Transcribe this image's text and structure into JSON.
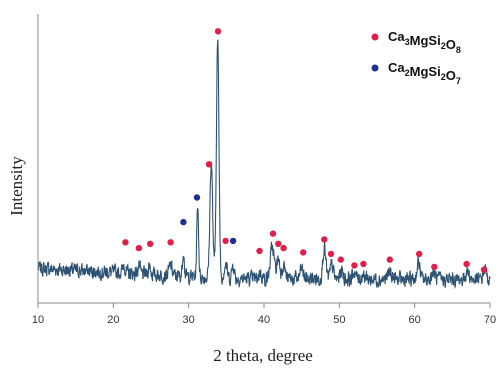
{
  "chart_data": {
    "type": "line",
    "title": "",
    "xlabel": "2 theta, degree",
    "ylabel": "Intensity",
    "xlim": [
      10,
      70
    ],
    "x_ticks": [
      10,
      20,
      30,
      40,
      50,
      60,
      70
    ],
    "y_ticks_visible": false,
    "grid": false,
    "legend_position": "top-right",
    "colors": {
      "line": "#2e5272",
      "marker_ca3": "#e0204b",
      "marker_ca2": "#1f2f8f",
      "axis": "#888888"
    },
    "legend": [
      {
        "id": "ca3",
        "base": "Ca",
        "parts": [
          [
            "Ca",
            "3"
          ],
          [
            "MgSi",
            "2"
          ],
          [
            "O",
            "8"
          ]
        ],
        "color": "#e0204b"
      },
      {
        "id": "ca2",
        "base": "Ca",
        "parts": [
          [
            "Ca",
            "2"
          ],
          [
            "MgSi",
            "2"
          ],
          [
            "O",
            "7"
          ]
        ],
        "color": "#1f2f8f"
      }
    ],
    "baseline": {
      "start": 0.12,
      "mid": 0.085,
      "end": 0.08
    },
    "series": [
      {
        "peaks": [
          [
            21.4,
            0.03,
            0.15
          ],
          [
            23.4,
            0.025,
            0.15
          ],
          [
            24.8,
            0.03,
            0.15
          ],
          [
            27.6,
            0.035,
            0.2
          ],
          [
            29.3,
            0.09,
            0.12
          ],
          [
            31.2,
            0.25,
            0.12
          ],
          [
            33.0,
            0.4,
            0.18
          ],
          [
            33.85,
            0.82,
            0.17
          ],
          [
            34.9,
            0.05,
            0.2
          ],
          [
            35.9,
            0.05,
            0.15
          ],
          [
            39.5,
            0.02,
            0.2
          ],
          [
            41.1,
            0.11,
            0.25
          ],
          [
            41.9,
            0.07,
            0.2
          ],
          [
            42.6,
            0.05,
            0.2
          ],
          [
            45.0,
            0.035,
            0.2
          ],
          [
            48.0,
            0.11,
            0.2
          ],
          [
            49.0,
            0.05,
            0.2
          ],
          [
            50.3,
            0.03,
            0.2
          ],
          [
            52.0,
            0.025,
            0.2
          ],
          [
            53.2,
            0.02,
            0.2
          ],
          [
            56.7,
            0.025,
            0.25
          ],
          [
            60.5,
            0.06,
            0.2
          ],
          [
            62.5,
            0.025,
            0.25
          ],
          [
            67.0,
            0.03,
            0.25
          ],
          [
            69.3,
            0.04,
            0.2
          ]
        ]
      }
    ],
    "markers": [
      {
        "x": 21.6,
        "y": 0.21,
        "phase": "ca3"
      },
      {
        "x": 23.4,
        "y": 0.19,
        "phase": "ca3"
      },
      {
        "x": 24.9,
        "y": 0.205,
        "phase": "ca3"
      },
      {
        "x": 27.6,
        "y": 0.21,
        "phase": "ca3"
      },
      {
        "x": 29.3,
        "y": 0.28,
        "phase": "ca2"
      },
      {
        "x": 31.1,
        "y": 0.365,
        "phase": "ca2"
      },
      {
        "x": 32.7,
        "y": 0.48,
        "phase": "ca3"
      },
      {
        "x": 33.9,
        "y": 0.94,
        "phase": "ca3"
      },
      {
        "x": 34.9,
        "y": 0.215,
        "phase": "ca3"
      },
      {
        "x": 35.9,
        "y": 0.215,
        "phase": "ca2"
      },
      {
        "x": 39.4,
        "y": 0.18,
        "phase": "ca3"
      },
      {
        "x": 41.2,
        "y": 0.24,
        "phase": "ca3"
      },
      {
        "x": 41.9,
        "y": 0.205,
        "phase": "ca3"
      },
      {
        "x": 42.6,
        "y": 0.19,
        "phase": "ca3"
      },
      {
        "x": 45.2,
        "y": 0.175,
        "phase": "ca3"
      },
      {
        "x": 48.0,
        "y": 0.22,
        "phase": "ca3"
      },
      {
        "x": 48.9,
        "y": 0.17,
        "phase": "ca3"
      },
      {
        "x": 50.2,
        "y": 0.15,
        "phase": "ca3"
      },
      {
        "x": 52.0,
        "y": 0.13,
        "phase": "ca3"
      },
      {
        "x": 53.2,
        "y": 0.135,
        "phase": "ca3"
      },
      {
        "x": 56.7,
        "y": 0.15,
        "phase": "ca3"
      },
      {
        "x": 60.6,
        "y": 0.17,
        "phase": "ca3"
      },
      {
        "x": 62.6,
        "y": 0.125,
        "phase": "ca3"
      },
      {
        "x": 66.9,
        "y": 0.135,
        "phase": "ca3"
      },
      {
        "x": 69.2,
        "y": 0.115,
        "phase": "ca3"
      }
    ]
  }
}
